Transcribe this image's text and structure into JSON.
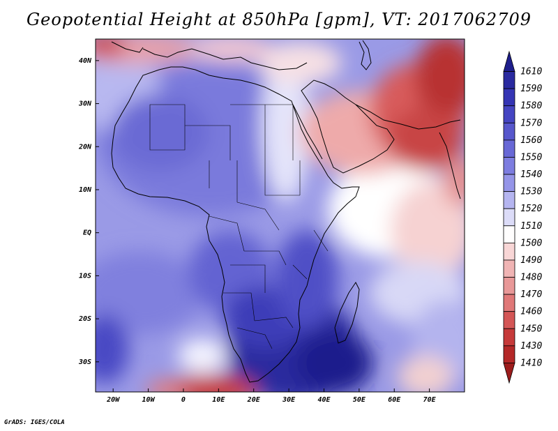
{
  "title": "Geopotential Height at 850hPa [gpm], VT: 2017062709",
  "footer": "GrADS: IGES/COLA",
  "map": {
    "lon_range": [
      -25,
      80
    ],
    "lat_range": [
      -37,
      45
    ],
    "x_ticks": [
      "20W",
      "10W",
      "0",
      "10E",
      "20E",
      "30E",
      "40E",
      "50E",
      "60E",
      "70E"
    ],
    "y_ticks": [
      "40N",
      "30N",
      "20N",
      "10N",
      "EQ",
      "10S",
      "20S",
      "30S"
    ]
  },
  "colorbar": {
    "levels": [
      "1610",
      "1590",
      "1580",
      "1570",
      "1560",
      "1550",
      "1540",
      "1530",
      "1520",
      "1510",
      "1500",
      "1490",
      "1480",
      "1470",
      "1460",
      "1450",
      "1430",
      "1410"
    ],
    "colors": [
      "#1e1e8c",
      "#2a2aa0",
      "#3535b4",
      "#4545c2",
      "#5757cc",
      "#6868d6",
      "#7d7de0",
      "#9595e8",
      "#b5b5f0",
      "#dcdcf8",
      "#fffefe",
      "#f8d6d6",
      "#f0b4b4",
      "#e89898",
      "#e07878",
      "#d45656",
      "#c63a3a",
      "#b42828",
      "#9c1c1c"
    ]
  },
  "chart_data": {
    "type": "heatmap",
    "title": "Geopotential Height at 850hPa [gpm], VT: 2017062709",
    "variable": "Geopotential Height at 850hPa",
    "units": "gpm",
    "valid_time": "2017062709",
    "x_ticks": [
      "20W",
      "10W",
      "0",
      "10E",
      "20E",
      "30E",
      "40E",
      "50E",
      "60E",
      "70E"
    ],
    "y_ticks": [
      "40N",
      "30N",
      "20N",
      "10N",
      "EQ",
      "10S",
      "20S",
      "30S"
    ],
    "levels": [
      1410,
      1430,
      1450,
      1460,
      1470,
      1480,
      1490,
      1500,
      1510,
      1520,
      1530,
      1540,
      1550,
      1560,
      1570,
      1580,
      1590,
      1610
    ],
    "cmap": "red-white-blue"
  }
}
